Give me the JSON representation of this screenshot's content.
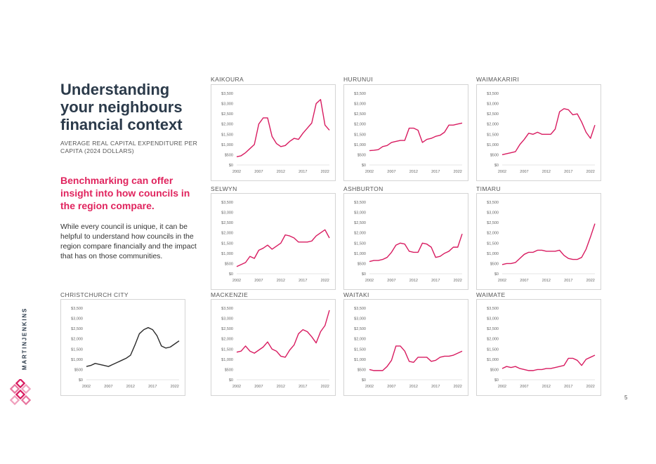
{
  "heading": {
    "title": "Understanding your neighbours financial context",
    "subtitle": "AVERAGE REAL CAPITAL EXPENDITURE PER CAPITA (2024 DOLLARS)",
    "highlight": "Benchmarking can offer insight into how councils in the region compare.",
    "body": "While every council is unique, it can be helpful to understand how councils in the region compare financially and the impact that has on those communities."
  },
  "brand": "MARTINJENKINS",
  "page_number": "5",
  "colors": {
    "accent": "#d81b60",
    "dark_line": "#2b2b2b",
    "title": "#2b3a4a"
  },
  "chart_data": [
    {
      "type": "line",
      "title": "KAIKOURA",
      "ylim": [
        0,
        3500
      ],
      "yticks": [
        "$0",
        "$500",
        "$1,000",
        "$1,500",
        "$2,000",
        "$2,500",
        "$3,000",
        "$3,500"
      ],
      "xticks": [
        "2002",
        "2007",
        "2012",
        "2017",
        "2022"
      ],
      "x": [
        2002,
        2003,
        2004,
        2005,
        2006,
        2007,
        2008,
        2009,
        2010,
        2011,
        2012,
        2013,
        2014,
        2015,
        2016,
        2017,
        2018,
        2019,
        2020,
        2021,
        2022,
        2023
      ],
      "series": [
        {
          "color": "#d81b60",
          "values": [
            400,
            450,
            600,
            800,
            1000,
            2000,
            2300,
            2300,
            1400,
            1050,
            900,
            950,
            1150,
            1300,
            1250,
            1550,
            1800,
            2050,
            3000,
            3200,
            1950,
            1700
          ]
        }
      ]
    },
    {
      "type": "line",
      "title": "HURUNUI",
      "ylim": [
        0,
        3500
      ],
      "yticks": [
        "$0",
        "$500",
        "$1,000",
        "$1,500",
        "$2,000",
        "$2,500",
        "$3,000",
        "$3,500"
      ],
      "xticks": [
        "2002",
        "2007",
        "2012",
        "2017",
        "2022"
      ],
      "x": [
        2002,
        2003,
        2004,
        2005,
        2006,
        2007,
        2008,
        2009,
        2010,
        2011,
        2012,
        2013,
        2014,
        2015,
        2016,
        2017,
        2018,
        2019,
        2020,
        2021,
        2022,
        2023
      ],
      "series": [
        {
          "color": "#d81b60",
          "values": [
            700,
            720,
            750,
            900,
            950,
            1100,
            1150,
            1200,
            1200,
            1800,
            1800,
            1700,
            1100,
            1250,
            1300,
            1400,
            1450,
            1600,
            1950,
            1950,
            2000,
            2050
          ]
        }
      ]
    },
    {
      "type": "line",
      "title": "WAIMAKARIRI",
      "ylim": [
        0,
        3500
      ],
      "yticks": [
        "$0",
        "$500",
        "$1,000",
        "$1,500",
        "$2,000",
        "$2,500",
        "$3,000",
        "$3,500"
      ],
      "xticks": [
        "2002",
        "2007",
        "2012",
        "2017",
        "2022"
      ],
      "x": [
        2002,
        2003,
        2004,
        2005,
        2006,
        2007,
        2008,
        2009,
        2010,
        2011,
        2012,
        2013,
        2014,
        2015,
        2016,
        2017,
        2018,
        2019,
        2020,
        2021,
        2022,
        2023
      ],
      "series": [
        {
          "color": "#d81b60",
          "values": [
            500,
            550,
            600,
            650,
            1000,
            1250,
            1550,
            1500,
            1600,
            1500,
            1500,
            1500,
            1750,
            2600,
            2750,
            2700,
            2450,
            2500,
            2100,
            1600,
            1300,
            1950
          ]
        }
      ]
    },
    {
      "type": "line",
      "title": "SELWYN",
      "ylim": [
        0,
        3500
      ],
      "yticks": [
        "$0",
        "$500",
        "$1,000",
        "$1,500",
        "$2,000",
        "$2,500",
        "$3,000",
        "$3,500"
      ],
      "xticks": [
        "2002",
        "2007",
        "2012",
        "2017",
        "2022"
      ],
      "x": [
        2002,
        2003,
        2004,
        2005,
        2006,
        2007,
        2008,
        2009,
        2010,
        2011,
        2012,
        2013,
        2014,
        2015,
        2016,
        2017,
        2018,
        2019,
        2020,
        2021,
        2022,
        2023
      ],
      "series": [
        {
          "color": "#d81b60",
          "values": [
            350,
            450,
            550,
            850,
            750,
            1150,
            1250,
            1400,
            1200,
            1350,
            1500,
            1900,
            1850,
            1750,
            1550,
            1550,
            1550,
            1600,
            1850,
            2000,
            2150,
            1750
          ]
        }
      ]
    },
    {
      "type": "line",
      "title": "ASHBURTON",
      "ylim": [
        0,
        3500
      ],
      "yticks": [
        "$0",
        "$500",
        "$1,000",
        "$1,500",
        "$2,000",
        "$2,500",
        "$3,000",
        "$3,500"
      ],
      "xticks": [
        "2002",
        "2007",
        "2012",
        "2017",
        "2022"
      ],
      "x": [
        2002,
        2003,
        2004,
        2005,
        2006,
        2007,
        2008,
        2009,
        2010,
        2011,
        2012,
        2013,
        2014,
        2015,
        2016,
        2017,
        2018,
        2019,
        2020,
        2021,
        2022,
        2023
      ],
      "series": [
        {
          "color": "#d81b60",
          "values": [
            600,
            650,
            650,
            700,
            800,
            1050,
            1400,
            1500,
            1450,
            1100,
            1050,
            1050,
            1500,
            1450,
            1300,
            800,
            850,
            1000,
            1100,
            1300,
            1300,
            1950
          ]
        }
      ]
    },
    {
      "type": "line",
      "title": "TIMARU",
      "ylim": [
        0,
        3500
      ],
      "yticks": [
        "$0",
        "$500",
        "$1,000",
        "$1,500",
        "$2,000",
        "$2,500",
        "$3,000",
        "$3,500"
      ],
      "xticks": [
        "2002",
        "2007",
        "2012",
        "2017",
        "2022"
      ],
      "x": [
        2002,
        2003,
        2004,
        2005,
        2006,
        2007,
        2008,
        2009,
        2010,
        2011,
        2012,
        2013,
        2014,
        2015,
        2016,
        2017,
        2018,
        2019,
        2020,
        2021,
        2022,
        2023
      ],
      "series": [
        {
          "color": "#d81b60",
          "values": [
            450,
            500,
            500,
            550,
            750,
            950,
            1050,
            1050,
            1150,
            1150,
            1100,
            1100,
            1100,
            1150,
            900,
            750,
            700,
            700,
            800,
            1200,
            1800,
            2450
          ]
        }
      ]
    },
    {
      "type": "line",
      "title": "MACKENZIE",
      "ylim": [
        0,
        3500
      ],
      "yticks": [
        "$0",
        "$500",
        "$1,000",
        "$1,500",
        "$2,000",
        "$2,500",
        "$3,000",
        "$3,500"
      ],
      "xticks": [
        "2002",
        "2007",
        "2012",
        "2017",
        "2022"
      ],
      "x": [
        2002,
        2003,
        2004,
        2005,
        2006,
        2007,
        2008,
        2009,
        2010,
        2011,
        2012,
        2013,
        2014,
        2015,
        2016,
        2017,
        2018,
        2019,
        2020,
        2021,
        2022,
        2023
      ],
      "series": [
        {
          "color": "#d81b60",
          "values": [
            1350,
            1400,
            1650,
            1400,
            1300,
            1450,
            1600,
            1850,
            1500,
            1400,
            1150,
            1100,
            1450,
            1700,
            2250,
            2450,
            2350,
            2100,
            1800,
            2350,
            2650,
            3400
          ]
        }
      ]
    },
    {
      "type": "line",
      "title": "WAITAKI",
      "ylim": [
        0,
        3500
      ],
      "yticks": [
        "$0",
        "$500",
        "$1,000",
        "$1,500",
        "$2,000",
        "$2,500",
        "$3,000",
        "$3,500"
      ],
      "xticks": [
        "2002",
        "2007",
        "2012",
        "2017",
        "2022"
      ],
      "x": [
        2002,
        2003,
        2004,
        2005,
        2006,
        2007,
        2008,
        2009,
        2010,
        2011,
        2012,
        2013,
        2014,
        2015,
        2016,
        2017,
        2018,
        2019,
        2020,
        2021,
        2022,
        2023
      ],
      "series": [
        {
          "color": "#d81b60",
          "values": [
            500,
            450,
            450,
            450,
            650,
            950,
            1650,
            1650,
            1400,
            900,
            850,
            1100,
            1100,
            1100,
            900,
            950,
            1100,
            1150,
            1150,
            1200,
            1300,
            1400
          ]
        }
      ]
    },
    {
      "type": "line",
      "title": "WAIMATE",
      "ylim": [
        0,
        3500
      ],
      "yticks": [
        "$0",
        "$500",
        "$1,000",
        "$1,500",
        "$2,000",
        "$2,500",
        "$3,000",
        "$3,500"
      ],
      "xticks": [
        "2002",
        "2007",
        "2012",
        "2017",
        "2022"
      ],
      "x": [
        2002,
        2003,
        2004,
        2005,
        2006,
        2007,
        2008,
        2009,
        2010,
        2011,
        2012,
        2013,
        2014,
        2015,
        2016,
        2017,
        2018,
        2019,
        2020,
        2021,
        2022,
        2023
      ],
      "series": [
        {
          "color": "#d81b60",
          "values": [
            550,
            650,
            600,
            650,
            550,
            500,
            450,
            450,
            500,
            500,
            550,
            550,
            600,
            650,
            700,
            1050,
            1050,
            950,
            700,
            1000,
            1100,
            1200
          ]
        }
      ]
    },
    {
      "type": "line",
      "title": "CHRISTCHURCH CITY",
      "ylim": [
        0,
        3500
      ],
      "yticks": [
        "$0",
        "$500",
        "$1,000",
        "$1,500",
        "$2,000",
        "$2,500",
        "$3,000",
        "$3,500"
      ],
      "xticks": [
        "2002",
        "2007",
        "2012",
        "2017",
        "2022"
      ],
      "x": [
        2002,
        2003,
        2004,
        2005,
        2006,
        2007,
        2008,
        2009,
        2010,
        2011,
        2012,
        2013,
        2014,
        2015,
        2016,
        2017,
        2018,
        2019,
        2020,
        2021,
        2022,
        2023
      ],
      "series": [
        {
          "color": "#2b2b2b",
          "values": [
            650,
            700,
            800,
            750,
            700,
            650,
            750,
            850,
            950,
            1050,
            1200,
            1700,
            2250,
            2450,
            2550,
            2450,
            2150,
            1650,
            1550,
            1600,
            1750,
            1900
          ]
        }
      ]
    }
  ]
}
